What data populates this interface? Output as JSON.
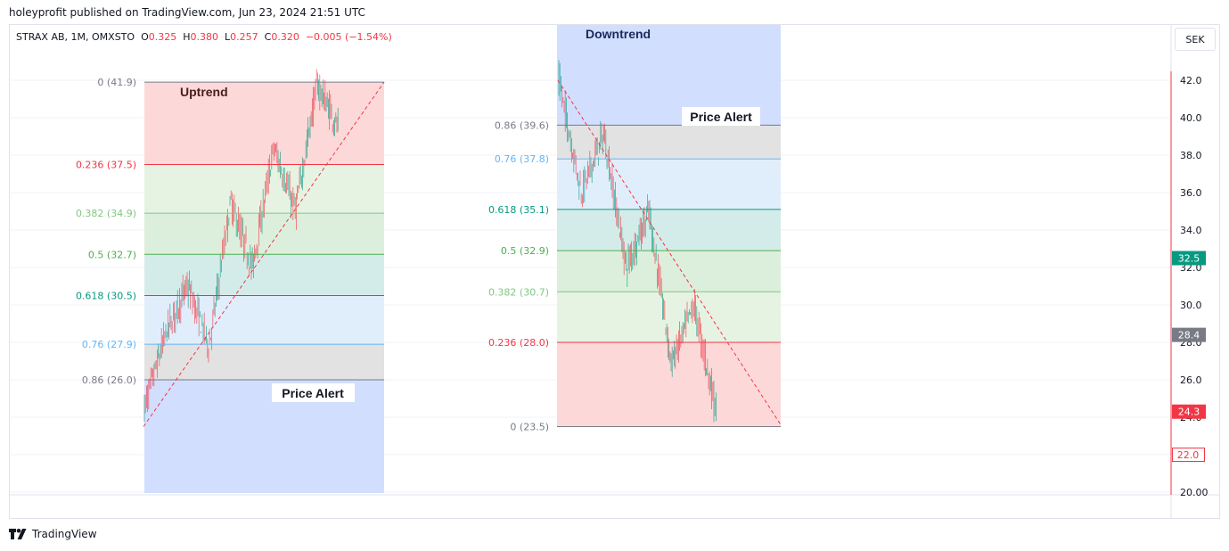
{
  "header": {
    "published": "holeyprofit published on TradingView.com, Jun 23, 2024 21:51 UTC"
  },
  "symbol_bar": {
    "symbol": "STRAX AB, 1M, OMXSTO",
    "o_label": "O",
    "o_value": "0.325",
    "h_label": "H",
    "h_value": "0.380",
    "l_label": "L",
    "l_value": "0.257",
    "c_label": "C",
    "c_value": "0.320",
    "change": "−0.005 (−1.54%)"
  },
  "currency_button": "SEK",
  "footer": {
    "brand": "TradingView",
    "logo_icon": "tradingview-logo-icon"
  },
  "colors": {
    "up_candle": "#089981",
    "down_candle": "#f23645",
    "zone_red": "#f2364533",
    "zone_blue": "#2962ff33"
  },
  "chart_data": {
    "type": "candlestick",
    "ylim": [
      20,
      43
    ],
    "y_ticks": [
      "42.0",
      "40.0",
      "38.0",
      "36.0",
      "34.0",
      "32.0",
      "30.0",
      "28.0",
      "26.0",
      "24.0",
      "22.0",
      "20.00"
    ],
    "price_labels": [
      {
        "text": "32.5",
        "value": 32.5,
        "color": "#089981",
        "style": "filled"
      },
      {
        "text": "28.4",
        "value": 28.4,
        "color": "#787b86",
        "style": "filled"
      },
      {
        "text": "24.3",
        "value": 24.3,
        "color": "#f23645",
        "style": "filled"
      },
      {
        "text": "22.0",
        "value": 22.0,
        "color": "#f23645",
        "style": "outline"
      }
    ],
    "fib_uptrend": {
      "title": "Uptrend",
      "alert": "Price Alert",
      "levels": [
        {
          "ratio": "0",
          "value": 41.9,
          "label": "0 (41.9)",
          "color": "#787b86"
        },
        {
          "ratio": "0.236",
          "value": 37.5,
          "label": "0.236 (37.5)",
          "color": "#f23645"
        },
        {
          "ratio": "0.382",
          "value": 34.9,
          "label": "0.382 (34.9)",
          "color": "#81c784"
        },
        {
          "ratio": "0.5",
          "value": 32.7,
          "label": "0.5 (32.7)",
          "color": "#4caf50"
        },
        {
          "ratio": "0.618",
          "value": 30.5,
          "label": "0.618 (30.5)",
          "color": "#089981"
        },
        {
          "ratio": "0.76",
          "value": 27.9,
          "label": "0.76 (27.9)",
          "color": "#64b5f6"
        },
        {
          "ratio": "0.86",
          "value": 26.0,
          "label": "0.86 (26.0)",
          "color": "#787b86"
        }
      ]
    },
    "fib_downtrend": {
      "title": "Downtrend",
      "alert": "Price Alert",
      "levels": [
        {
          "ratio": "0.86",
          "value": 39.6,
          "label": "0.86 (39.6)",
          "color": "#787b86"
        },
        {
          "ratio": "0.76",
          "value": 37.8,
          "label": "0.76 (37.8)",
          "color": "#64b5f6"
        },
        {
          "ratio": "0.618",
          "value": 35.1,
          "label": "0.618 (35.1)",
          "color": "#089981"
        },
        {
          "ratio": "0.5",
          "value": 32.9,
          "label": "0.5 (32.9)",
          "color": "#4caf50"
        },
        {
          "ratio": "0.382",
          "value": 30.7,
          "label": "0.382 (30.7)",
          "color": "#81c784"
        },
        {
          "ratio": "0.236",
          "value": 28.0,
          "label": "0.236 (28.0)",
          "color": "#f23645"
        },
        {
          "ratio": "0",
          "value": 23.5,
          "label": "0 (23.5)",
          "color": "#787b86"
        }
      ]
    },
    "uptrend_path": [
      24.5,
      28.5,
      31.0,
      27.8,
      35.5,
      32.0,
      38.4,
      35.0,
      41.8,
      39.4
    ],
    "downtrend_path": [
      42.0,
      36.0,
      39.1,
      32.0,
      35.0,
      26.9,
      30.0,
      24.3
    ]
  }
}
